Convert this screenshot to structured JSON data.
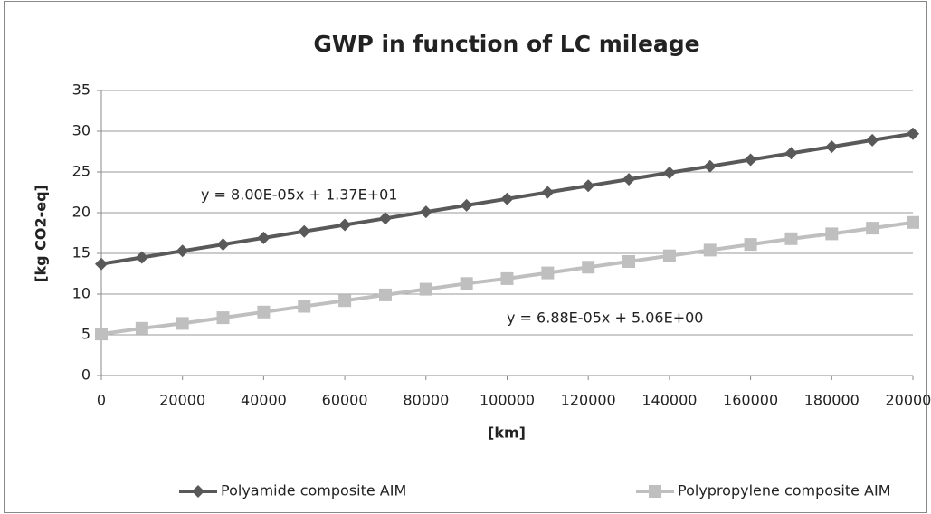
{
  "chart_data": {
    "type": "line",
    "title": "GWP in function of LC mileage",
    "xlabel": "[km]",
    "ylabel": "[kg CO2-eq]",
    "x": [
      0,
      10000,
      20000,
      30000,
      40000,
      50000,
      60000,
      70000,
      80000,
      90000,
      100000,
      110000,
      120000,
      130000,
      140000,
      150000,
      160000,
      170000,
      180000,
      190000,
      200000
    ],
    "series": [
      {
        "name": "Polyamide composite AIM",
        "color": "#595959",
        "marker": "diamond",
        "values": [
          13.7,
          14.5,
          15.3,
          16.1,
          16.9,
          17.7,
          18.5,
          19.3,
          20.1,
          20.9,
          21.7,
          22.5,
          23.3,
          24.1,
          24.9,
          25.7,
          26.5,
          27.3,
          28.1,
          28.9,
          29.7
        ]
      },
      {
        "name": "Polypropylene composite AIM",
        "color": "#bfbfbf",
        "marker": "square",
        "values": [
          5.1,
          5.8,
          6.4,
          7.1,
          7.8,
          8.5,
          9.2,
          9.9,
          10.6,
          11.3,
          11.9,
          12.6,
          13.3,
          14.0,
          14.7,
          15.4,
          16.1,
          16.8,
          17.4,
          18.1,
          18.8
        ]
      }
    ],
    "annotations": [
      "y = 8.00E-05x + 1.37E+01",
      "y = 6.88E-05x + 5.06E+00"
    ],
    "xlim": [
      0,
      200000
    ],
    "xticks": [
      0,
      20000,
      40000,
      60000,
      80000,
      100000,
      120000,
      140000,
      160000,
      180000,
      200000
    ],
    "ylim": [
      0,
      35
    ],
    "yticks": [
      0,
      5,
      10,
      15,
      20,
      25,
      30,
      35
    ],
    "grid": true,
    "legend": "bottom"
  }
}
